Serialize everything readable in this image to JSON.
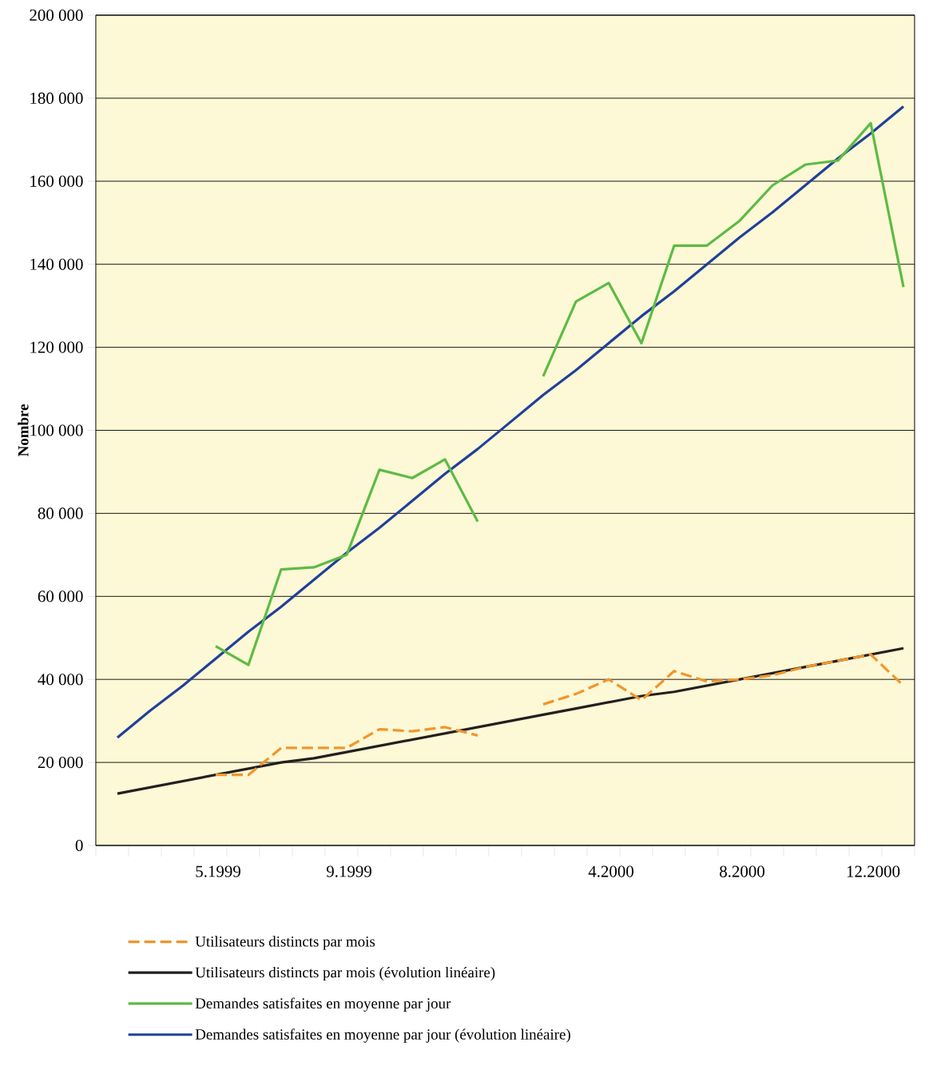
{
  "chart_data": {
    "type": "line",
    "ylabel": "Nombre",
    "categories": [
      null,
      null,
      null,
      "5.1999",
      null,
      null,
      null,
      "9.1999",
      null,
      null,
      null,
      null,
      null,
      null,
      null,
      "4.2000",
      null,
      null,
      null,
      "8.2000",
      null,
      null,
      null,
      "12.2000",
      null
    ],
    "series": [
      {
        "name": "Utilisateurs distincts par mois",
        "color": "#f0962e",
        "line_style": "dashed",
        "values": [
          null,
          null,
          null,
          17000,
          17000,
          23500,
          23500,
          23500,
          28000,
          27500,
          28500,
          26500,
          null,
          34000,
          36500,
          40000,
          35000,
          42000,
          39500,
          40000,
          41000,
          43000,
          44500,
          46000,
          38500
        ]
      },
      {
        "name": "Utilisateurs distincts par mois (évolution linéaire)",
        "color": "#231f20",
        "line_style": "solid",
        "values": [
          12500,
          14000,
          15500,
          17000,
          18500,
          20000,
          21000,
          22500,
          24000,
          25500,
          27000,
          28500,
          30000,
          31500,
          33000,
          34500,
          36000,
          37000,
          38500,
          40000,
          41500,
          43000,
          44500,
          46000,
          47500
        ]
      },
      {
        "name": "Demandes satisfaites en moyenne par jour",
        "color": "#5dbb46",
        "line_style": "solid",
        "values": [
          null,
          null,
          null,
          48000,
          43500,
          66500,
          67000,
          70000,
          90500,
          88500,
          93000,
          78000,
          null,
          113000,
          131000,
          135500,
          121000,
          144500,
          144500,
          150500,
          159000,
          164000,
          165000,
          174000,
          134500
        ]
      },
      {
        "name": "Demandes satisfaites en moyenne par jour (évolution linéaire)",
        "color": "#21409a",
        "line_style": "solid",
        "values": [
          26000,
          32500,
          38500,
          45000,
          51500,
          57500,
          64000,
          70500,
          76500,
          83000,
          89500,
          95500,
          102000,
          108500,
          114500,
          121000,
          127500,
          133500,
          140000,
          146500,
          152500,
          159000,
          165500,
          171500,
          178000
        ]
      }
    ],
    "ylim": [
      0,
      200000
    ],
    "yticks": [
      0,
      {
        "value": 20000,
        "label": "20 000"
      },
      {
        "value": 40000,
        "label": "40 000"
      },
      {
        "value": 60000,
        "label": "60 000"
      },
      {
        "value": 80000,
        "label": "80 000"
      },
      {
        "value": 100000,
        "label": "100 000"
      },
      {
        "value": 120000,
        "label": "120 000"
      },
      {
        "value": 140000,
        "label": "140 000"
      },
      {
        "value": 160000,
        "label": "160 000"
      },
      {
        "value": 180000,
        "label": "180 000"
      },
      {
        "value": 200000,
        "label": "200 000"
      }
    ],
    "grid": "y",
    "legend": "bottom"
  }
}
